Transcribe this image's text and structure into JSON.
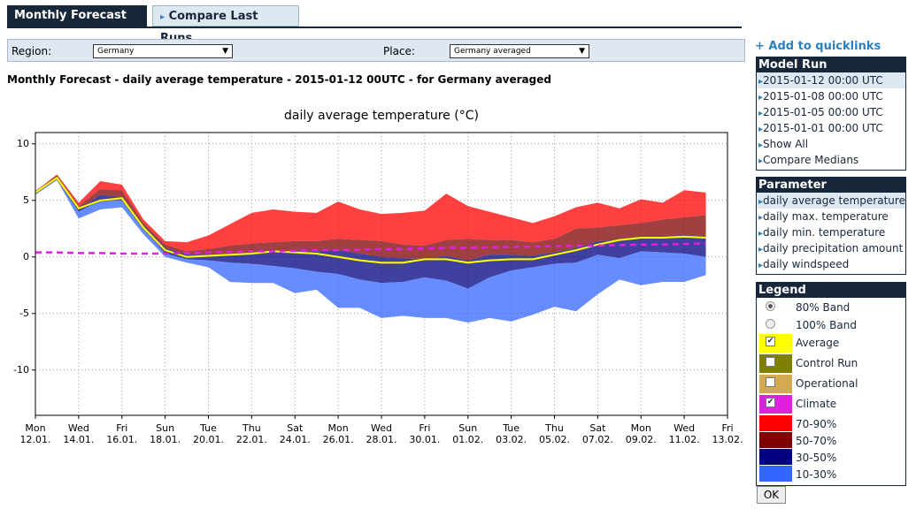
{
  "tabs": [
    "Monthly Forecast",
    "Compare Last Runs"
  ],
  "form": {
    "region_label": "Region:",
    "region_value": "Germany",
    "place_label": "Place:",
    "place_value": "Germany averaged"
  },
  "heading": "Monthly Forecast - daily average temperature - 2015-01-12 00UTC - for Germany averaged",
  "chart_data": {
    "type": "area",
    "title": "daily average temperature (°C)",
    "x": [
      0,
      1,
      2,
      3,
      4,
      5,
      6,
      7,
      8,
      9,
      10,
      11,
      12,
      13,
      14,
      15,
      16,
      17,
      18,
      19,
      20,
      21,
      22,
      23,
      24,
      25,
      26,
      27,
      28,
      29,
      30,
      31
    ],
    "xlim": [
      0,
      32
    ],
    "xticks": [
      {
        "value": 0,
        "label": [
          "Mon",
          "12.01."
        ]
      },
      {
        "value": 2,
        "label": [
          "Wed",
          "14.01."
        ]
      },
      {
        "value": 4,
        "label": [
          "Fri",
          "16.01."
        ]
      },
      {
        "value": 6,
        "label": [
          "Sun",
          "18.01."
        ]
      },
      {
        "value": 8,
        "label": [
          "Tue",
          "20.01."
        ]
      },
      {
        "value": 10,
        "label": [
          "Thu",
          "22.01."
        ]
      },
      {
        "value": 12,
        "label": [
          "Sat",
          "24.01."
        ]
      },
      {
        "value": 14,
        "label": [
          "Mon",
          "26.01."
        ]
      },
      {
        "value": 16,
        "label": [
          "Wed",
          "28.01."
        ]
      },
      {
        "value": 18,
        "label": [
          "Fri",
          "30.01."
        ]
      },
      {
        "value": 20,
        "label": [
          "Sun",
          "01.02."
        ]
      },
      {
        "value": 22,
        "label": [
          "Tue",
          "03.02."
        ]
      },
      {
        "value": 24,
        "label": [
          "Thu",
          "05.02."
        ]
      },
      {
        "value": 26,
        "label": [
          "Sat",
          "07.02."
        ]
      },
      {
        "value": 28,
        "label": [
          "Mon",
          "09.02."
        ]
      },
      {
        "value": 30,
        "label": [
          "Wed",
          "11.02."
        ]
      },
      {
        "value": 32,
        "label": [
          "Fri",
          "13.02."
        ]
      }
    ],
    "ylim": [
      -14,
      11
    ],
    "yticks": [
      -10,
      -5,
      0,
      5,
      10
    ],
    "grid": true,
    "series": [
      {
        "name": "Average",
        "color": "#ffff00",
        "checked": true,
        "values": [
          5.7,
          7.0,
          4.3,
          5.0,
          5.2,
          2.6,
          0.6,
          0.0,
          0.1,
          0.2,
          0.3,
          0.5,
          0.4,
          0.3,
          0.0,
          -0.3,
          -0.5,
          -0.5,
          -0.2,
          -0.2,
          -0.5,
          -0.3,
          -0.2,
          -0.2,
          0.2,
          0.6,
          1.1,
          1.5,
          1.7,
          1.7,
          1.8,
          1.7
        ]
      },
      {
        "name": "Control Run",
        "color": "#808000",
        "checked": false
      },
      {
        "name": "Operational",
        "color": "#d4aa50",
        "checked": false
      },
      {
        "name": "Climate",
        "color": "#e020e0",
        "checked": true,
        "values": [
          0.4,
          0.4,
          0.35,
          0.35,
          0.3,
          0.3,
          0.3,
          0.35,
          0.4,
          0.45,
          0.5,
          0.5,
          0.55,
          0.6,
          0.6,
          0.65,
          0.7,
          0.7,
          0.75,
          0.8,
          0.8,
          0.85,
          0.9,
          0.9,
          0.95,
          1.0,
          1.0,
          1.05,
          1.1,
          1.1,
          1.15,
          1.2
        ]
      },
      {
        "name": "70-90%",
        "color": "#ff0000",
        "upper": [
          5.8,
          7.3,
          4.8,
          6.7,
          6.4,
          3.3,
          1.4,
          1.3,
          1.9,
          2.9,
          3.9,
          4.2,
          4.0,
          3.9,
          4.9,
          4.2,
          3.8,
          3.9,
          4.1,
          5.6,
          4.5,
          4.0,
          3.5,
          3.0,
          3.6,
          4.4,
          4.8,
          4.3,
          5.1,
          4.8,
          5.9,
          5.7
        ],
        "lower": [
          5.7,
          7.2,
          4.5,
          6.0,
          5.9,
          3.0,
          1.1,
          0.5,
          0.7,
          1.0,
          1.2,
          1.3,
          1.4,
          1.4,
          1.6,
          1.5,
          1.4,
          1.1,
          1.0,
          1.5,
          1.6,
          1.5,
          1.5,
          1.3,
          1.6,
          2.5,
          2.6,
          2.8,
          3.0,
          3.3,
          3.5,
          3.7
        ]
      },
      {
        "name": "50-70%",
        "color": "#800000",
        "upper": [
          5.7,
          7.2,
          4.5,
          6.0,
          5.9,
          3.0,
          1.1,
          0.5,
          0.7,
          1.0,
          1.2,
          1.3,
          1.4,
          1.4,
          1.6,
          1.5,
          1.4,
          1.1,
          1.0,
          1.5,
          1.6,
          1.5,
          1.5,
          1.3,
          1.6,
          2.5,
          2.6,
          2.8,
          3.0,
          3.3,
          3.5,
          3.7
        ],
        "lower": [
          5.6,
          7.0,
          4.2,
          5.5,
          5.3,
          2.8,
          0.8,
          0.2,
          0.2,
          0.2,
          0.4,
          0.5,
          0.5,
          0.5,
          0.6,
          0.3,
          0.0,
          -0.1,
          -0.2,
          0.1,
          -0.3,
          0.2,
          0.2,
          0.1,
          0.4,
          0.8,
          1.4,
          1.5,
          1.7,
          1.7,
          2.0,
          1.8
        ]
      },
      {
        "name": "30-50%",
        "color": "#000080",
        "upper": [
          5.6,
          7.0,
          4.2,
          5.5,
          5.3,
          2.8,
          0.8,
          0.2,
          0.2,
          0.2,
          0.4,
          0.5,
          0.5,
          0.5,
          0.6,
          0.3,
          0.0,
          -0.1,
          -0.2,
          0.1,
          -0.3,
          0.2,
          0.2,
          0.1,
          0.4,
          0.8,
          1.4,
          1.5,
          1.7,
          1.7,
          2.0,
          1.8
        ],
        "lower": [
          5.6,
          6.9,
          4.0,
          5.0,
          5.0,
          2.5,
          0.3,
          -0.2,
          -0.3,
          -0.5,
          -0.6,
          -0.8,
          -1.0,
          -1.3,
          -1.5,
          -2.0,
          -2.3,
          -2.2,
          -1.8,
          -2.1,
          -2.8,
          -1.8,
          -1.2,
          -0.9,
          -0.6,
          -0.5,
          0.2,
          -0.1,
          0.5,
          0.4,
          0.3,
          0.0
        ]
      },
      {
        "name": "10-30%",
        "color": "#3366ff",
        "upper": [
          5.6,
          6.9,
          4.0,
          5.0,
          5.0,
          2.5,
          0.3,
          -0.2,
          -0.3,
          -0.5,
          -0.6,
          -0.8,
          -1.0,
          -1.3,
          -1.5,
          -2.0,
          -2.3,
          -2.2,
          -1.8,
          -2.1,
          -2.8,
          -1.8,
          -1.2,
          -0.9,
          -0.6,
          -0.5,
          0.2,
          -0.1,
          0.5,
          0.4,
          0.3,
          0.0
        ],
        "lower": [
          5.5,
          6.8,
          3.4,
          4.2,
          4.4,
          2.0,
          0.0,
          -0.5,
          -0.9,
          -2.2,
          -2.3,
          -2.3,
          -3.2,
          -2.9,
          -4.5,
          -4.5,
          -5.4,
          -5.2,
          -5.4,
          -5.4,
          -5.8,
          -5.4,
          -5.7,
          -5.1,
          -4.4,
          -4.8,
          -3.3,
          -2.0,
          -2.5,
          -2.2,
          -2.2,
          -1.6
        ]
      }
    ]
  },
  "sidebar": {
    "quicklink": "+ Add to quicklinks",
    "model_run": {
      "title": "Model Run",
      "items": [
        "2015-01-12 00:00 UTC",
        "2015-01-08 00:00 UTC",
        "2015-01-05 00:00 UTC",
        "2015-01-01 00:00 UTC",
        "Show All",
        "Compare Medians"
      ]
    },
    "parameter": {
      "title": "Parameter",
      "items": [
        "daily average temperature",
        "daily max. temperature",
        "daily min. temperature",
        "daily precipitation amount",
        "daily windspeed"
      ]
    },
    "legend": {
      "title": "Legend",
      "band_modes": [
        {
          "label": "80% Band",
          "selected": true
        },
        {
          "label": "100% Band",
          "selected": false
        }
      ],
      "button": "OK"
    }
  }
}
